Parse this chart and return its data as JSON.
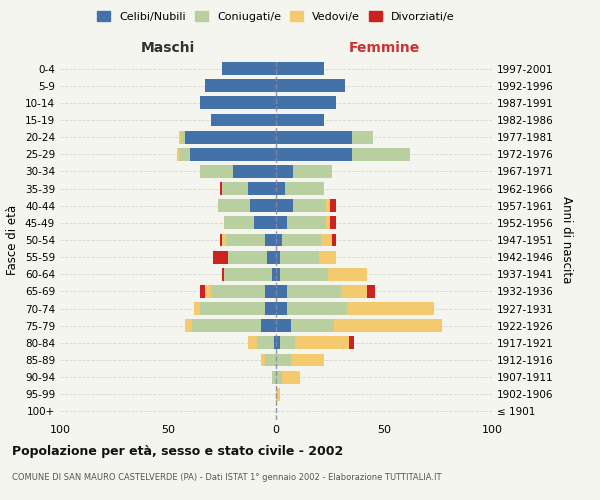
{
  "age_groups": [
    "100+",
    "95-99",
    "90-94",
    "85-89",
    "80-84",
    "75-79",
    "70-74",
    "65-69",
    "60-64",
    "55-59",
    "50-54",
    "45-49",
    "40-44",
    "35-39",
    "30-34",
    "25-29",
    "20-24",
    "15-19",
    "10-14",
    "5-9",
    "0-4"
  ],
  "birth_years": [
    "≤ 1901",
    "1902-1906",
    "1907-1911",
    "1912-1916",
    "1917-1921",
    "1922-1926",
    "1927-1931",
    "1932-1936",
    "1937-1941",
    "1942-1946",
    "1947-1951",
    "1952-1956",
    "1957-1961",
    "1962-1966",
    "1967-1971",
    "1972-1976",
    "1977-1981",
    "1982-1986",
    "1987-1991",
    "1992-1996",
    "1997-2001"
  ],
  "maschi": {
    "celibi": [
      0,
      0,
      0,
      0,
      1,
      7,
      5,
      5,
      2,
      4,
      5,
      10,
      12,
      13,
      20,
      40,
      42,
      30,
      35,
      33,
      25
    ],
    "coniugati": [
      0,
      0,
      2,
      5,
      8,
      32,
      30,
      25,
      22,
      18,
      18,
      14,
      15,
      12,
      15,
      5,
      2,
      0,
      0,
      0,
      0
    ],
    "vedovi": [
      0,
      0,
      0,
      2,
      4,
      3,
      3,
      3,
      0,
      0,
      2,
      0,
      0,
      0,
      0,
      1,
      1,
      0,
      0,
      0,
      0
    ],
    "divorziati": [
      0,
      0,
      0,
      0,
      0,
      0,
      0,
      2,
      1,
      7,
      1,
      0,
      0,
      1,
      0,
      0,
      0,
      0,
      0,
      0,
      0
    ]
  },
  "femmine": {
    "celibi": [
      0,
      0,
      0,
      0,
      2,
      7,
      5,
      5,
      2,
      2,
      3,
      5,
      8,
      4,
      8,
      35,
      35,
      22,
      28,
      32,
      22
    ],
    "coniugati": [
      0,
      0,
      3,
      7,
      7,
      20,
      28,
      25,
      22,
      18,
      18,
      18,
      15,
      18,
      18,
      27,
      10,
      0,
      0,
      0,
      0
    ],
    "vedovi": [
      0,
      2,
      8,
      15,
      25,
      50,
      40,
      12,
      18,
      8,
      5,
      2,
      2,
      0,
      0,
      0,
      0,
      0,
      0,
      0,
      0
    ],
    "divorziati": [
      0,
      0,
      0,
      0,
      2,
      0,
      0,
      4,
      0,
      0,
      2,
      3,
      3,
      0,
      0,
      0,
      0,
      0,
      0,
      0,
      0
    ]
  },
  "colors": {
    "celibi": "#4472a8",
    "coniugati": "#b8cfa0",
    "vedovi": "#f5c96e",
    "divorziati": "#cc2222"
  },
  "legend_labels": [
    "Celibi/Nubili",
    "Coniugati/e",
    "Vedovi/e",
    "Divorziati/e"
  ],
  "title": "Popolazione per età, sesso e stato civile - 2002",
  "subtitle": "COMUNE DI SAN MAURO CASTELVERDE (PA) - Dati ISTAT 1° gennaio 2002 - Elaborazione TUTTITALIA.IT",
  "xlabel_left": "Maschi",
  "xlabel_right": "Femmine",
  "ylabel_left": "Fasce di età",
  "ylabel_right": "Anni di nascita",
  "xlim": 100,
  "bg_color": "#f5f5f0",
  "grid_color": "#cccccc",
  "bar_height": 0.75
}
